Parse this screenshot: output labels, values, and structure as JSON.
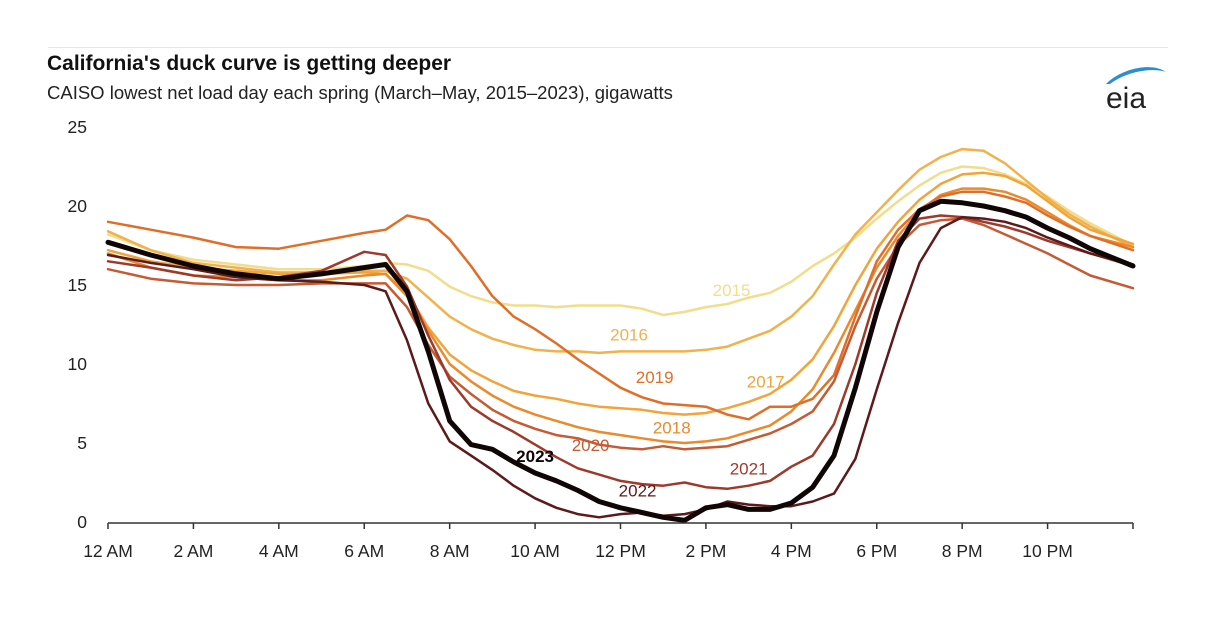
{
  "chart_data": {
    "type": "line",
    "title": "California's duck curve is getting deeper",
    "subtitle": "CAISO lowest net load day each spring (March–May, 2015–2023), gigawatts",
    "xlabel": "",
    "ylabel": "",
    "xlim": [
      0,
      24
    ],
    "ylim": [
      0,
      25
    ],
    "yticks": [
      0,
      5,
      10,
      15,
      20,
      25
    ],
    "ytick_labels": [
      "0",
      "5",
      "10",
      "15",
      "20",
      "25"
    ],
    "xticks": [
      0,
      2,
      4,
      6,
      8,
      10,
      12,
      14,
      16,
      18,
      20,
      22,
      24
    ],
    "xtick_labels": [
      "12 AM",
      "2 AM",
      "4 AM",
      "6 AM",
      "8 AM",
      "10 AM",
      "12 PM",
      "2 PM",
      "4 PM",
      "6 PM",
      "8 PM",
      "10 PM",
      ""
    ],
    "grid": false,
    "legend": "inline labels",
    "x": [
      0,
      1,
      2,
      3,
      4,
      5,
      6,
      6.5,
      7,
      7.5,
      8,
      8.5,
      9,
      9.5,
      10,
      10.5,
      11,
      11.5,
      12,
      12.5,
      13,
      13.5,
      14,
      14.5,
      15,
      15.5,
      16,
      16.5,
      17,
      17.5,
      18,
      18.5,
      19,
      19.5,
      20,
      20.5,
      21,
      21.5,
      22,
      22.5,
      23,
      24
    ],
    "series": [
      {
        "name": "2015",
        "color": "#f1dd8c",
        "width": 2.5,
        "label_at": [
          14.6,
          14.3
        ],
        "values": [
          18.2,
          17.2,
          16.6,
          16.3,
          16.0,
          16.0,
          16.2,
          16.4,
          16.3,
          15.9,
          14.9,
          14.3,
          13.9,
          13.7,
          13.7,
          13.6,
          13.7,
          13.7,
          13.7,
          13.5,
          13.1,
          13.3,
          13.6,
          13.8,
          14.2,
          14.5,
          15.2,
          16.2,
          17.0,
          18.0,
          19.2,
          20.3,
          21.3,
          22.1,
          22.5,
          22.4,
          22.0,
          21.4,
          20.6,
          19.7,
          18.9,
          17.5
        ]
      },
      {
        "name": "2016",
        "color": "#f1b24c",
        "width": 2.5,
        "label_at": [
          12.2,
          11.5
        ],
        "values": [
          18.4,
          17.2,
          16.4,
          16.1,
          15.8,
          15.8,
          15.9,
          15.9,
          15.4,
          14.2,
          13.0,
          12.2,
          11.6,
          11.2,
          10.9,
          10.8,
          10.8,
          10.7,
          10.8,
          10.8,
          10.8,
          10.8,
          10.9,
          11.1,
          11.6,
          12.1,
          13.0,
          14.3,
          16.3,
          18.2,
          19.6,
          21.0,
          22.3,
          23.1,
          23.6,
          23.5,
          22.7,
          21.6,
          20.5,
          19.5,
          18.7,
          17.4
        ]
      },
      {
        "name": "2017",
        "color": "#f0a43a",
        "width": 2.5,
        "label_at": [
          15.4,
          8.5
        ],
        "values": [
          17.2,
          16.5,
          16.1,
          15.9,
          15.7,
          15.7,
          15.8,
          15.7,
          14.5,
          12.3,
          10.6,
          9.6,
          8.9,
          8.3,
          8.0,
          7.8,
          7.5,
          7.3,
          7.2,
          7.1,
          6.9,
          6.8,
          6.9,
          7.2,
          7.6,
          8.1,
          9.0,
          10.3,
          12.4,
          15.0,
          17.3,
          19.0,
          20.4,
          21.4,
          22.0,
          22.1,
          21.9,
          21.3,
          20.3,
          19.3,
          18.5,
          17.6
        ]
      },
      {
        "name": "2018",
        "color": "#e98a2c",
        "width": 2.5,
        "label_at": [
          13.2,
          5.6
        ],
        "values": [
          17.0,
          16.1,
          15.6,
          15.5,
          15.3,
          15.3,
          15.6,
          15.7,
          14.3,
          12.1,
          10.0,
          8.9,
          8.0,
          7.3,
          6.8,
          6.4,
          6.0,
          5.7,
          5.5,
          5.3,
          5.1,
          5.0,
          5.1,
          5.3,
          5.7,
          6.1,
          7.0,
          8.4,
          10.7,
          13.4,
          16.1,
          18.1,
          19.7,
          20.7,
          21.1,
          21.1,
          20.9,
          20.4,
          19.6,
          18.8,
          18.1,
          17.4
        ]
      },
      {
        "name": "2019",
        "color": "#df6f28",
        "width": 2.5,
        "label_at": [
          12.8,
          8.8
        ],
        "values": [
          19.0,
          18.5,
          18.0,
          17.4,
          17.3,
          17.8,
          18.3,
          18.5,
          19.4,
          19.1,
          17.9,
          16.2,
          14.3,
          13.0,
          12.2,
          11.3,
          10.3,
          9.4,
          8.5,
          7.9,
          7.5,
          7.4,
          7.3,
          6.8,
          6.5,
          7.3,
          7.3,
          7.8,
          9.3,
          13.0,
          16.5,
          18.5,
          19.8,
          20.6,
          20.9,
          20.9,
          20.6,
          20.2,
          19.4,
          18.7,
          18.1,
          17.2
        ]
      },
      {
        "name": "2020",
        "color": "#c55b34",
        "width": 2.5,
        "label_at": [
          11.3,
          4.5
        ],
        "values": [
          16.0,
          15.4,
          15.1,
          15.0,
          15.0,
          15.1,
          15.1,
          15.1,
          13.6,
          11.2,
          9.2,
          8.1,
          7.1,
          6.4,
          5.9,
          5.5,
          5.3,
          4.9,
          4.7,
          4.6,
          4.8,
          4.6,
          4.7,
          4.8,
          5.2,
          5.6,
          6.2,
          7.0,
          8.9,
          12.4,
          15.4,
          17.5,
          18.8,
          19.1,
          19.2,
          18.8,
          18.2,
          17.6,
          17.0,
          16.3,
          15.6,
          14.8
        ]
      },
      {
        "name": "2021",
        "color": "#9c3a2b",
        "width": 2.5,
        "label_at": [
          15.0,
          3.0
        ],
        "values": [
          16.5,
          16.1,
          15.6,
          15.3,
          15.5,
          15.9,
          17.1,
          16.9,
          14.9,
          11.8,
          9.0,
          7.3,
          6.4,
          5.7,
          4.9,
          4.1,
          3.4,
          3.0,
          2.6,
          2.4,
          2.3,
          2.5,
          2.2,
          2.1,
          2.3,
          2.6,
          3.5,
          4.2,
          6.2,
          10.0,
          14.5,
          17.8,
          19.2,
          19.4,
          19.3,
          19.0,
          18.7,
          18.3,
          17.8,
          17.4,
          17.0,
          16.2
        ]
      },
      {
        "name": "2022",
        "color": "#5c1a1b",
        "width": 2.5,
        "label_at": [
          12.4,
          1.6
        ],
        "values": [
          16.9,
          16.4,
          16.0,
          15.5,
          15.3,
          15.2,
          15.0,
          14.6,
          11.5,
          7.5,
          5.1,
          4.2,
          3.3,
          2.3,
          1.5,
          0.9,
          0.5,
          0.3,
          0.5,
          0.6,
          0.4,
          0.5,
          0.8,
          1.3,
          1.1,
          1.0,
          1.0,
          1.3,
          1.8,
          4.0,
          8.4,
          12.6,
          16.4,
          18.6,
          19.3,
          19.2,
          19.0,
          18.6,
          18.0,
          17.5,
          17.0,
          16.3
        ]
      },
      {
        "name": "2023",
        "color": "#100606",
        "width": 5,
        "label_at": [
          10.0,
          3.8
        ],
        "bold": true,
        "values": [
          17.7,
          16.9,
          16.2,
          15.7,
          15.4,
          15.7,
          16.1,
          16.3,
          14.6,
          10.8,
          6.4,
          4.9,
          4.6,
          3.8,
          3.1,
          2.6,
          2.0,
          1.3,
          0.9,
          0.6,
          0.3,
          0.1,
          0.9,
          1.1,
          0.8,
          0.8,
          1.2,
          2.2,
          4.2,
          8.5,
          13.3,
          17.4,
          19.7,
          20.3,
          20.2,
          20.0,
          19.7,
          19.3,
          18.6,
          18.0,
          17.3,
          16.2
        ]
      }
    ]
  },
  "logo": {
    "text": "eia",
    "accent": "#2a8fd0"
  }
}
